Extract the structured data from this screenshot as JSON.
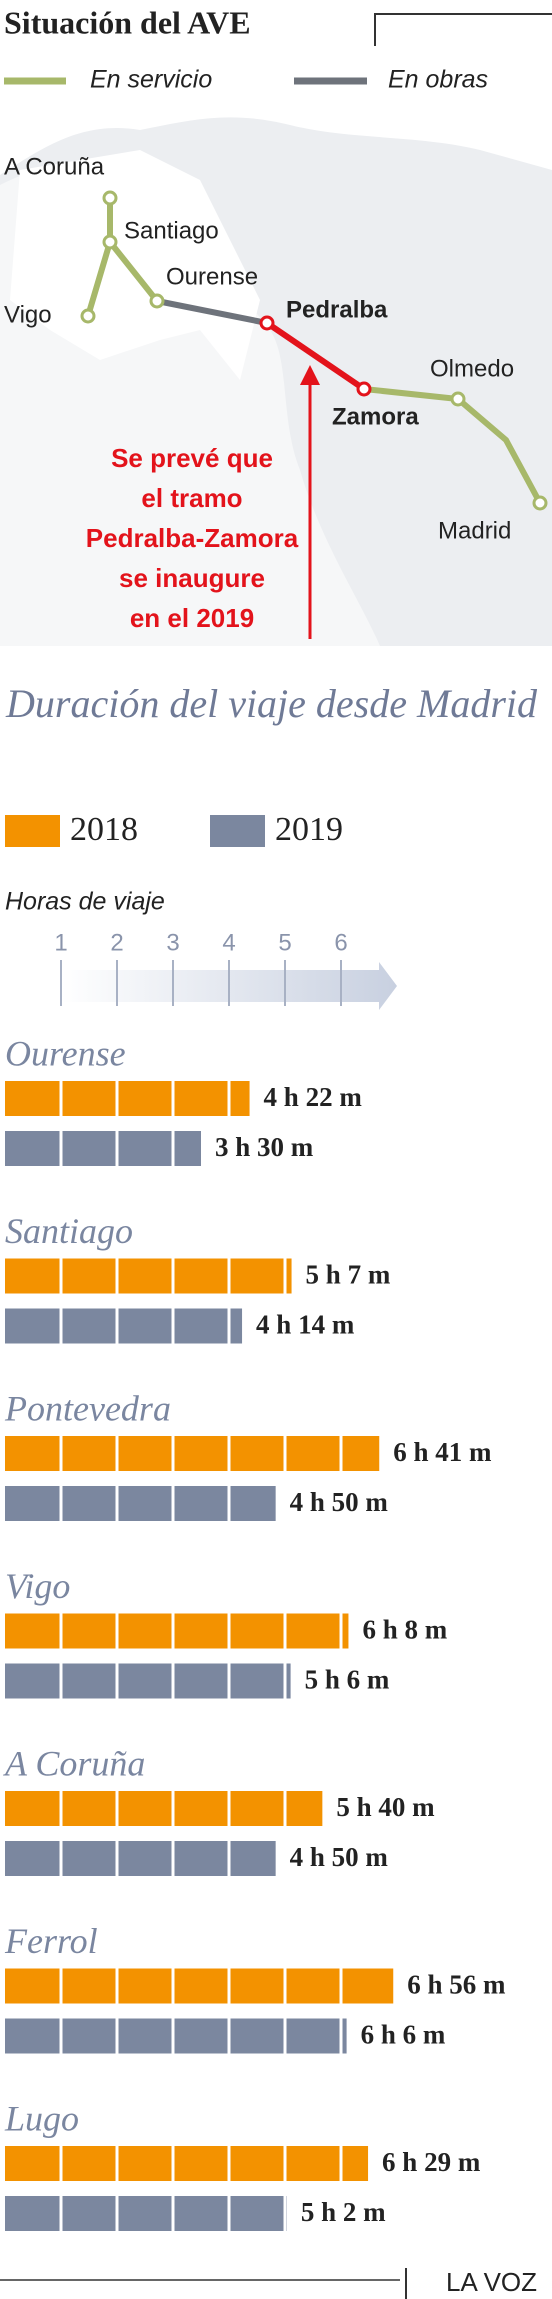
{
  "header": {
    "title": "Situación del AVE",
    "legend": [
      {
        "label": "En servicio",
        "color": "#a7b86a"
      },
      {
        "label": "En obras",
        "color": "#6e737b"
      }
    ]
  },
  "map": {
    "stations": [
      "A Coruña",
      "Santiago",
      "Vigo",
      "Ourense",
      "Pedralba",
      "Zamora",
      "Olmedo",
      "Madrid"
    ],
    "works_color": "#e3131b",
    "note": [
      "Se prevé que",
      "el tramo",
      "Pedralba-Zamora",
      "se inaugure",
      "en el 2019"
    ]
  },
  "chart_data": {
    "type": "bar",
    "orientation": "horizontal",
    "title": "Duración del viaje desde Madrid",
    "x_label": "Horas de viaje",
    "xlim": [
      0,
      7
    ],
    "xticks": [
      1,
      2,
      3,
      4,
      5,
      6
    ],
    "categories": [
      "Ourense",
      "Santiago",
      "Pontevedra",
      "Vigo",
      "A Coruña",
      "Ferrol",
      "Lugo"
    ],
    "series": [
      {
        "name": "2018",
        "color": "#f39200",
        "values": [
          4.367,
          5.117,
          6.683,
          6.133,
          5.667,
          6.933,
          6.483
        ],
        "value_labels": [
          "4 h 22 m",
          "5 h 7 m",
          "6 h 41 m",
          "6 h 8 m",
          "5 h 40 m",
          "6 h 56 m",
          "6 h 29 m"
        ]
      },
      {
        "name": "2019",
        "color": "#7b879f",
        "values": [
          3.5,
          4.233,
          4.833,
          5.1,
          4.833,
          6.1,
          5.033
        ],
        "value_labels": [
          "3 h 30 m",
          "4 h 14 m",
          "4 h 50 m",
          "5 h 6 m",
          "4 h 50 m",
          "6 h 6 m",
          "5 h 2 m"
        ]
      }
    ]
  },
  "footer": {
    "source": "LA VOZ"
  }
}
